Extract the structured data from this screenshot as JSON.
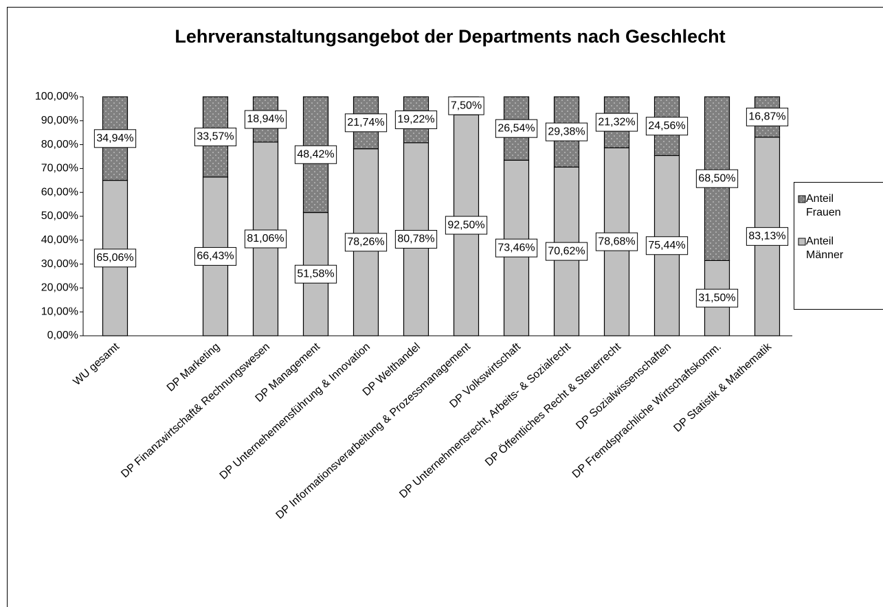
{
  "chart_data": {
    "type": "stacked_bar",
    "title": "Lehrveranstaltungsangebot der Departments nach Geschlecht",
    "categories": [
      "WU gesamt",
      null,
      "DP Marketing",
      "DP Finanzwirtschaft& Rechnungswesen",
      "DP Management",
      "DP Unternehemensführung & Innovation",
      "DP Welthandel",
      "DP Informationsverarbeitung & Prozessmanagement",
      "DP Volkswirtschaft",
      "DP Unternehmensrecht, Arbeits- & Sozialrecht",
      "DP Öffentliches Recht & Steuerrecht",
      "DP Sozialwissenschaften",
      "DP Fremdsprachliche Wirtschaftskomm.",
      "DP Statistik & Mathematik"
    ],
    "series": [
      {
        "name": "Anteil Männer",
        "color": "#c0c0c0",
        "values": [
          65.06,
          null,
          66.43,
          81.06,
          51.58,
          78.26,
          80.78,
          92.5,
          73.46,
          70.62,
          78.68,
          75.44,
          31.5,
          83.13
        ],
        "value_labels": [
          "65,06%",
          null,
          "66,43%",
          "81,06%",
          "51,58%",
          "78,26%",
          "80,78%",
          "92,50%",
          "73,46%",
          "70,62%",
          "78,68%",
          "75,44%",
          "31,50%",
          "83,13%"
        ]
      },
      {
        "name": "Anteil Frauen",
        "color": "#808080",
        "values": [
          34.94,
          null,
          33.57,
          18.94,
          48.42,
          21.74,
          19.22,
          7.5,
          26.54,
          29.38,
          21.32,
          24.56,
          68.5,
          16.87
        ],
        "value_labels": [
          "34,94%",
          null,
          "33,57%",
          "18,94%",
          "48,42%",
          "21,74%",
          "19,22%",
          "7,50%",
          "26,54%",
          "29,38%",
          "21,32%",
          "24,56%",
          "68,50%",
          "16,87%"
        ]
      }
    ],
    "ylim": [
      0,
      100
    ],
    "yticks": [
      {
        "value": 0,
        "label": "0,00%"
      },
      {
        "value": 10,
        "label": "10,00%"
      },
      {
        "value": 20,
        "label": "20,00%"
      },
      {
        "value": 30,
        "label": "30,00%"
      },
      {
        "value": 40,
        "label": "40,00%"
      },
      {
        "value": 50,
        "label": "50,00%"
      },
      {
        "value": 60,
        "label": "60,00%"
      },
      {
        "value": 70,
        "label": "70,00%"
      },
      {
        "value": 80,
        "label": "80,00%"
      },
      {
        "value": 90,
        "label": "90,00%"
      },
      {
        "value": 100,
        "label": "100,00%"
      }
    ],
    "grid": false,
    "legend": "right"
  }
}
